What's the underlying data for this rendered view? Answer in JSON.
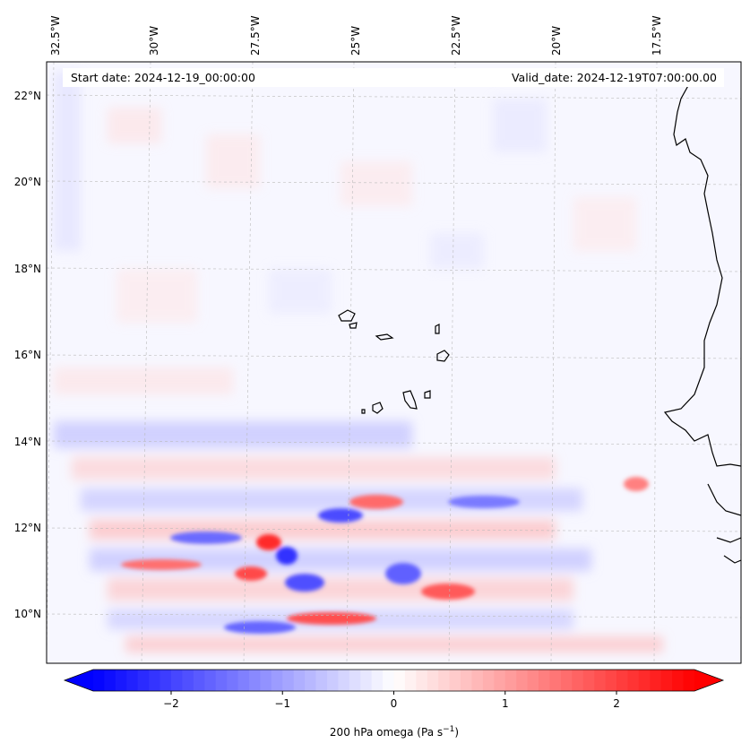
{
  "map": {
    "header": {
      "start_date": "Start date: 2024-12-19_00:00:00",
      "valid_date": "Valid_date: 2024-12-19T07:00:00.00"
    },
    "longitude_labels": [
      "32.5°W",
      "30°W",
      "27.5°W",
      "25°W",
      "22.5°W",
      "20°W",
      "17.5°W"
    ],
    "latitude_labels": [
      "22°N",
      "20°N",
      "18°N",
      "16°N",
      "14°N",
      "12°N",
      "10°N"
    ],
    "extent": {
      "lon_min": -33.0,
      "lon_max": -16.0,
      "lat_min": 8.9,
      "lat_max": 22.8
    }
  },
  "colorbar": {
    "label": "200 hPa omega (Pa s",
    "label_exponent": "−1",
    "label_close": ")",
    "range": [
      -2.7,
      2.7
    ],
    "tick_values": [
      -2,
      -1,
      0,
      1,
      2
    ],
    "tick_labels": [
      "−2",
      "−1",
      "0",
      "1",
      "2"
    ],
    "low_color": "#0000ff",
    "mid_color": "#ffffff",
    "high_color": "#ff0000"
  }
}
